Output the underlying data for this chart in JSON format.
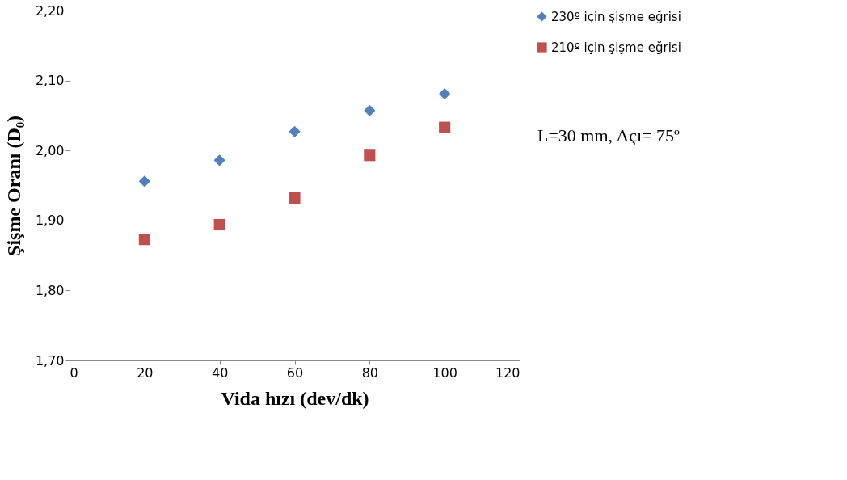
{
  "chart_data": {
    "type": "scatter",
    "xlabel": "Vida hızı (dev/dk)",
    "ylabel": "Şişme Oranı (D₀)",
    "annotations": [
      "L=30 mm,  Açı= 75º"
    ],
    "x": [
      20,
      40,
      60,
      80,
      100
    ],
    "series": [
      {
        "name": "230º için şişme eğrisi",
        "color": "#4f81bd",
        "marker": "diamond",
        "values": [
          1.956,
          1.986,
          2.027,
          2.057,
          2.081
        ]
      },
      {
        "name": "210º  için şişme eğrisi",
        "color": "#c0504d",
        "marker": "square",
        "values": [
          1.873,
          1.894,
          1.932,
          1.993,
          2.033
        ]
      }
    ],
    "xlim": [
      0,
      120
    ],
    "xticks": [
      0,
      20,
      40,
      60,
      80,
      100,
      120
    ],
    "ylim": [
      1.7,
      2.2
    ],
    "yticks": [
      {
        "value": 1.7,
        "label": "1,70"
      },
      {
        "value": 1.8,
        "label": "1,80"
      },
      {
        "value": 1.9,
        "label": "1,90"
      },
      {
        "value": 2.0,
        "label": "2,00"
      },
      {
        "value": 2.1,
        "label": "2,10"
      },
      {
        "value": 2.2,
        "label": "2,20"
      }
    ],
    "grid": false,
    "legend": "right"
  }
}
